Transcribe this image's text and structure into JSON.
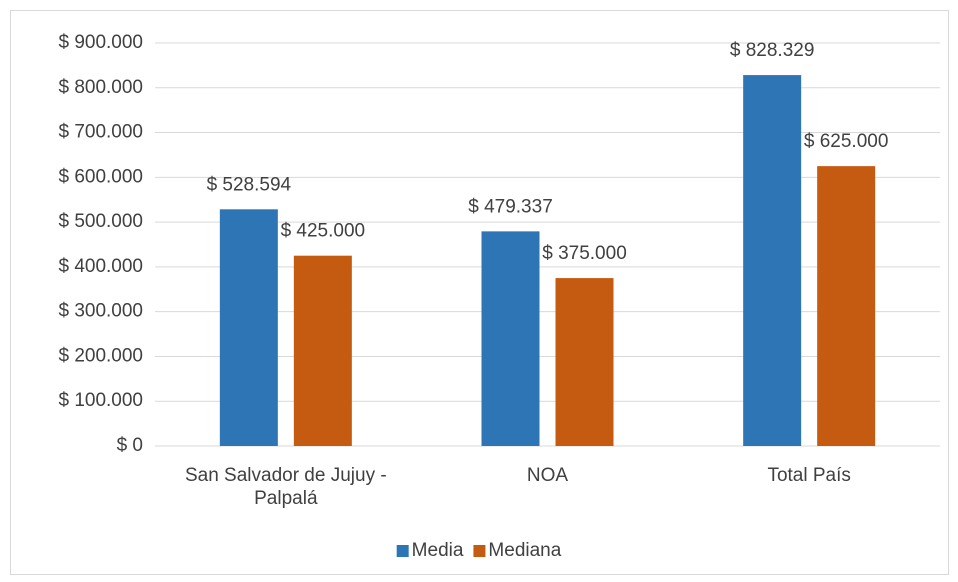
{
  "chart_data": {
    "type": "bar",
    "categories": [
      "San Salvador de Jujuy - Palpalá",
      "NOA",
      "Total País"
    ],
    "series": [
      {
        "name": "Media",
        "color": "#2e75b6",
        "values": [
          528594,
          479337,
          828329
        ],
        "value_labels": [
          "$ 528.594",
          "$ 479.337",
          "$ 828.329"
        ]
      },
      {
        "name": "Mediana",
        "color": "#c55a11",
        "values": [
          425000,
          375000,
          625000
        ],
        "value_labels": [
          "$ 425.000",
          "$ 375.000",
          "$ 625.000"
        ]
      }
    ],
    "ylim": [
      0,
      900000
    ],
    "yticks": [
      {
        "value": 0,
        "label": "$ 0"
      },
      {
        "value": 100000,
        "label": "$ 100.000"
      },
      {
        "value": 200000,
        "label": "$ 200.000"
      },
      {
        "value": 300000,
        "label": "$ 300.000"
      },
      {
        "value": 400000,
        "label": "$ 400.000"
      },
      {
        "value": 500000,
        "label": "$ 500.000"
      },
      {
        "value": 600000,
        "label": "$ 600.000"
      },
      {
        "value": 700000,
        "label": "$ 700.000"
      },
      {
        "value": 800000,
        "label": "$ 800.000"
      },
      {
        "value": 900000,
        "label": "$ 900.000"
      }
    ],
    "grid": true,
    "legend": "bottom"
  }
}
